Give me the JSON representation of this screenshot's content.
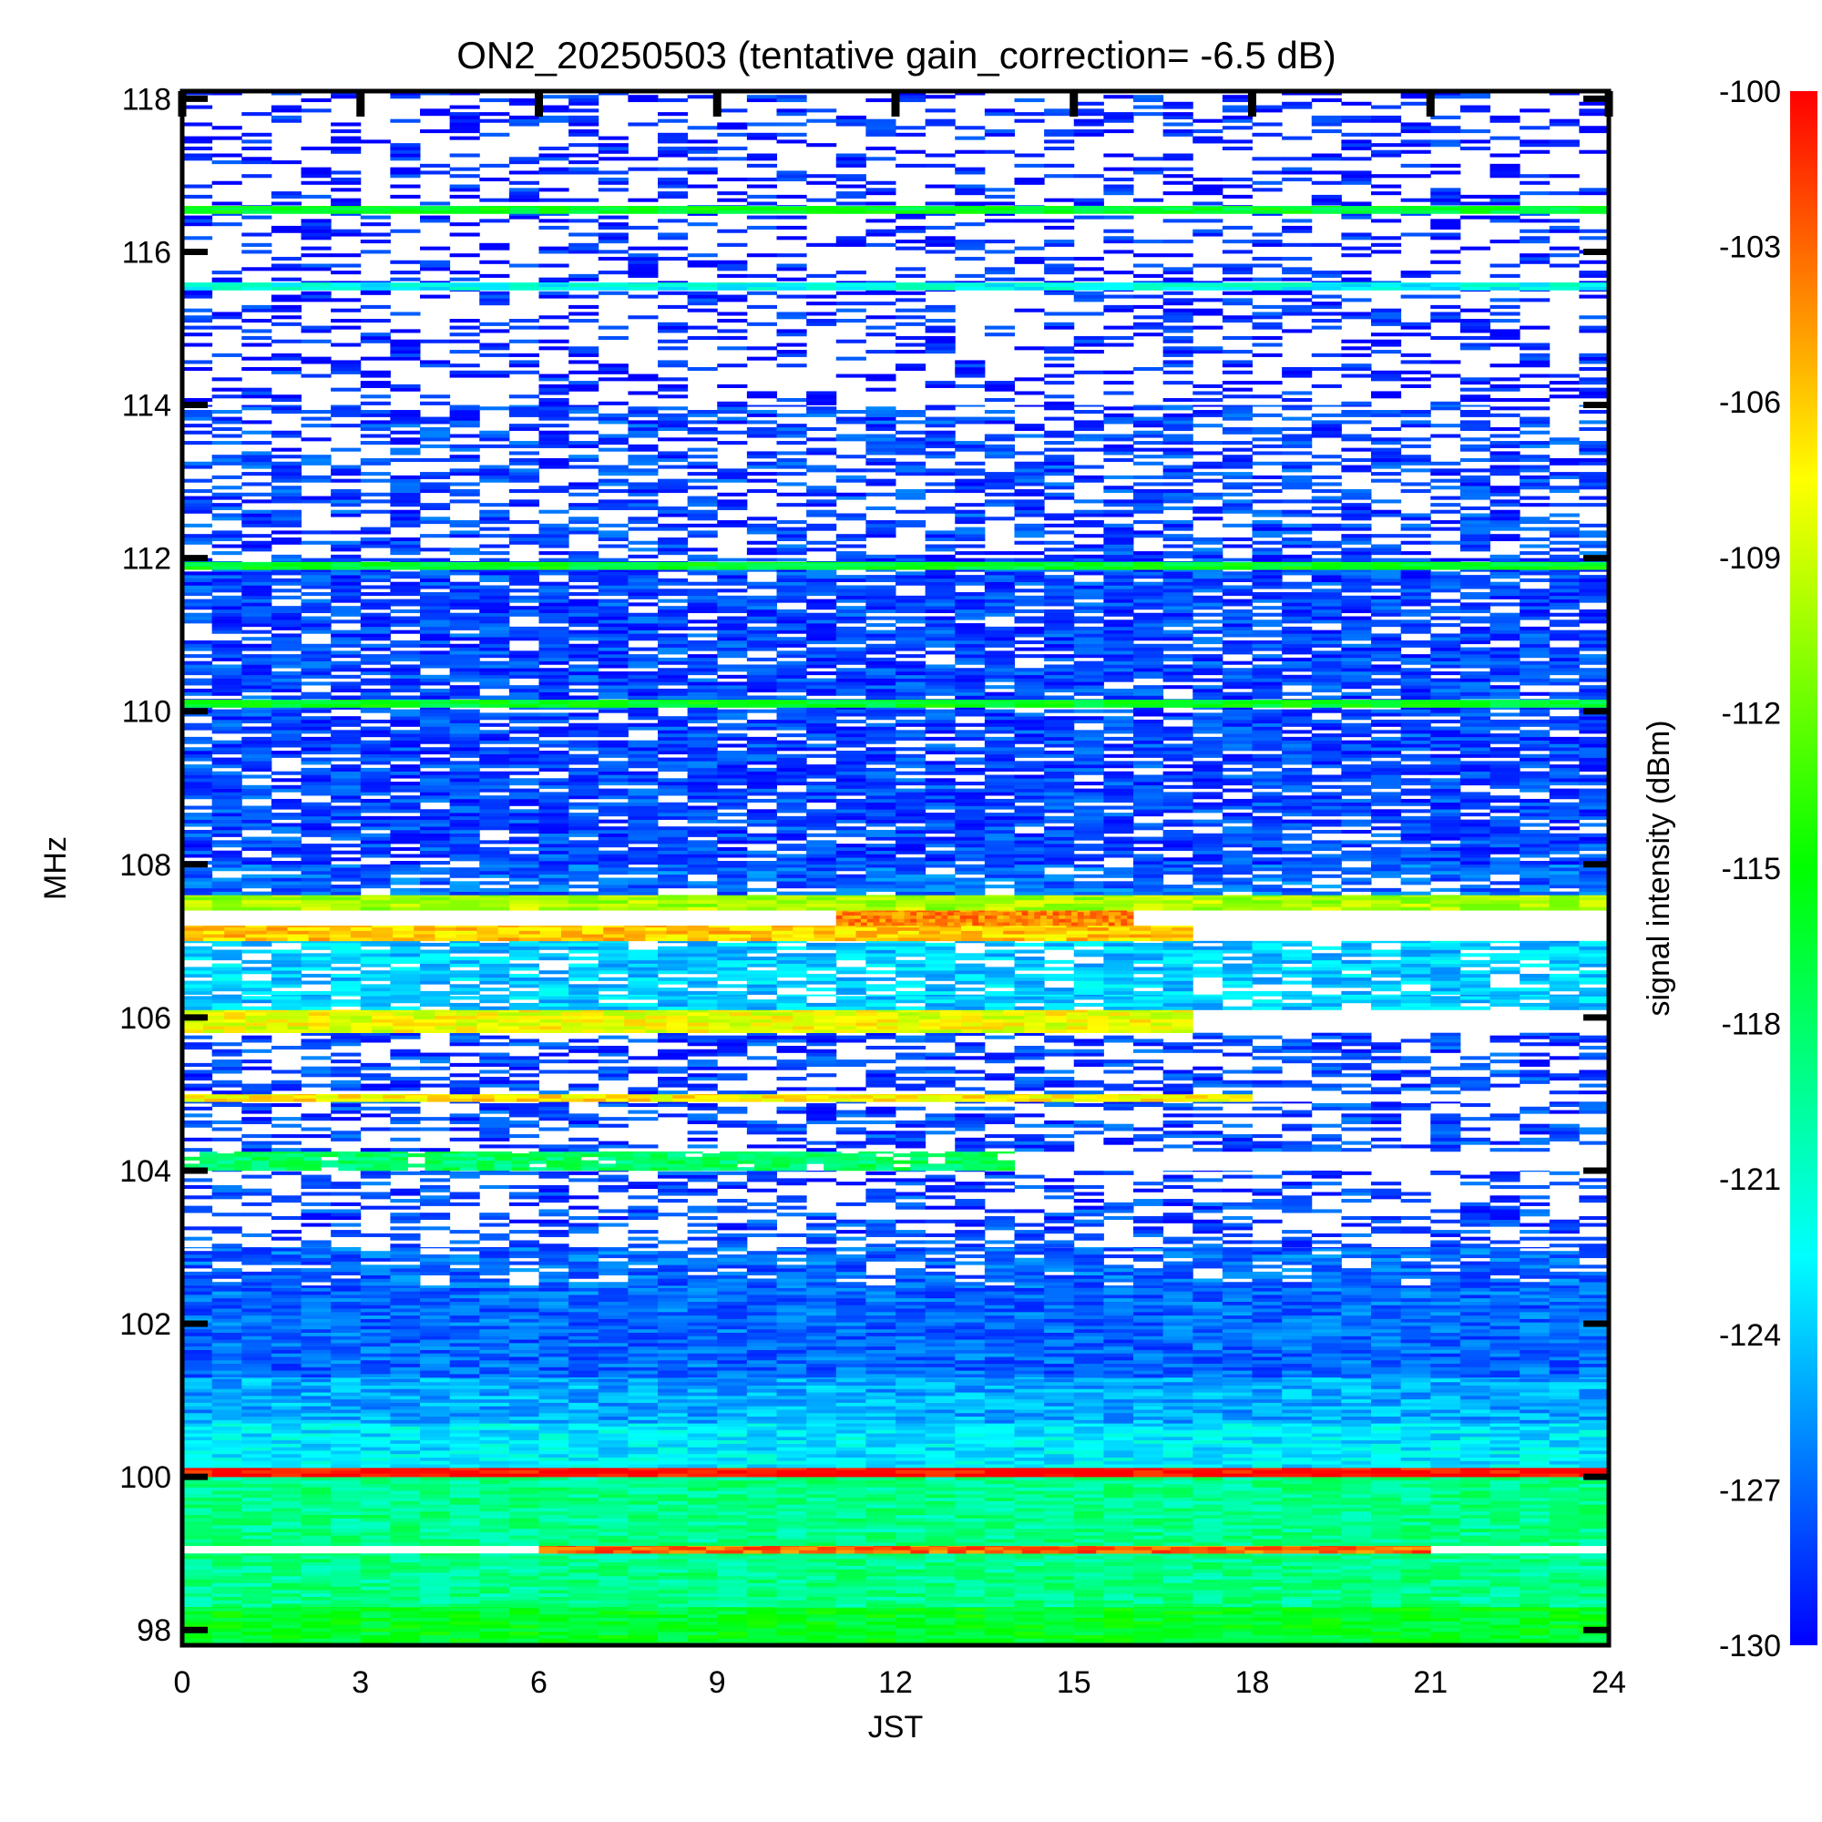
{
  "chart_data": {
    "type": "heatmap",
    "title": "ON2_20250503 (tentative gain_correction= -6.5 dB)",
    "xlabel": "JST",
    "ylabel": "MHz",
    "colorbar_label": "signal intensity (dBm)",
    "xlim": [
      0,
      24
    ],
    "ylim": [
      97.8,
      118.1
    ],
    "x_ticks": [
      "0",
      "3",
      "6",
      "9",
      "12",
      "15",
      "18",
      "21",
      "24"
    ],
    "y_ticks": [
      "98",
      "100",
      "102",
      "104",
      "106",
      "108",
      "110",
      "112",
      "114",
      "116",
      "118"
    ],
    "colorbar_ticks": [
      "-100",
      "-103",
      "-106",
      "-109",
      "-112",
      "-115",
      "-118",
      "-121",
      "-124",
      "-127",
      "-130"
    ],
    "color_range_dbm": [
      -130,
      -100
    ],
    "colormap": [
      "#0000ff",
      "#00ffff",
      "#00ff00",
      "#ffff00",
      "#ff0000"
    ],
    "blank_color": "#ffffff",
    "grid": false,
    "legend": "colorbar-right",
    "bands": [
      {
        "f0": 97.8,
        "f1": 98.3,
        "dbm": -116,
        "density": 1.0
      },
      {
        "f0": 98.3,
        "f1": 99.0,
        "dbm": -119,
        "density": 1.0
      },
      {
        "f0": 99.0,
        "f1": 99.1,
        "dbm": -103,
        "density": 1.0,
        "x_range": [
          6,
          21
        ]
      },
      {
        "f0": 99.1,
        "f1": 100.0,
        "dbm": -119,
        "density": 1.0
      },
      {
        "f0": 100.0,
        "f1": 100.12,
        "dbm": -100,
        "density": 1.0
      },
      {
        "f0": 100.12,
        "f1": 100.7,
        "dbm": -123,
        "density": 1.0
      },
      {
        "f0": 100.7,
        "f1": 101.3,
        "dbm": -125,
        "density": 1.0
      },
      {
        "f0": 101.3,
        "f1": 102.5,
        "dbm": -127,
        "density": 1.0
      },
      {
        "f0": 102.5,
        "f1": 103.0,
        "dbm": -127,
        "density": 0.8
      },
      {
        "f0": 103.0,
        "f1": 104.0,
        "dbm": -128,
        "density": 0.4
      },
      {
        "f0": 104.0,
        "f1": 104.25,
        "dbm": -118,
        "density": 0.9,
        "x_range": [
          0,
          14
        ]
      },
      {
        "f0": 104.25,
        "f1": 104.9,
        "dbm": -128,
        "density": 0.5
      },
      {
        "f0": 104.9,
        "f1": 105.0,
        "dbm": -107,
        "density": 1.0,
        "x_range": [
          0,
          18
        ]
      },
      {
        "f0": 105.0,
        "f1": 105.8,
        "dbm": -128,
        "density": 0.5
      },
      {
        "f0": 105.8,
        "f1": 106.1,
        "dbm": -108,
        "density": 1.0,
        "x_range": [
          0,
          17
        ]
      },
      {
        "f0": 106.1,
        "f1": 106.3,
        "dbm": -124,
        "density": 0.9
      },
      {
        "f0": 106.3,
        "f1": 107.0,
        "dbm": -124,
        "density": 0.8
      },
      {
        "f0": 107.0,
        "f1": 107.2,
        "dbm": -106,
        "density": 1.0,
        "x_range": [
          0,
          17
        ]
      },
      {
        "f0": 107.2,
        "f1": 107.4,
        "dbm": -104,
        "density": 1.0,
        "x_range": [
          11,
          16
        ]
      },
      {
        "f0": 107.4,
        "f1": 107.6,
        "dbm": -110,
        "density": 1.0
      },
      {
        "f0": 107.6,
        "f1": 108.0,
        "dbm": -127,
        "density": 0.8
      },
      {
        "f0": 108.0,
        "f1": 112.0,
        "dbm": -128,
        "density": 0.8
      },
      {
        "f0": 110.05,
        "f1": 110.15,
        "dbm": -116,
        "density": 1.0
      },
      {
        "f0": 111.85,
        "f1": 111.95,
        "dbm": -116,
        "density": 1.0
      },
      {
        "f0": 112.0,
        "f1": 114.0,
        "dbm": -128,
        "density": 0.5
      },
      {
        "f0": 114.0,
        "f1": 118.1,
        "dbm": -129,
        "density": 0.3
      },
      {
        "f0": 115.5,
        "f1": 115.6,
        "dbm": -122,
        "density": 1.0
      },
      {
        "f0": 116.5,
        "f1": 116.6,
        "dbm": -116,
        "density": 1.0
      }
    ]
  }
}
